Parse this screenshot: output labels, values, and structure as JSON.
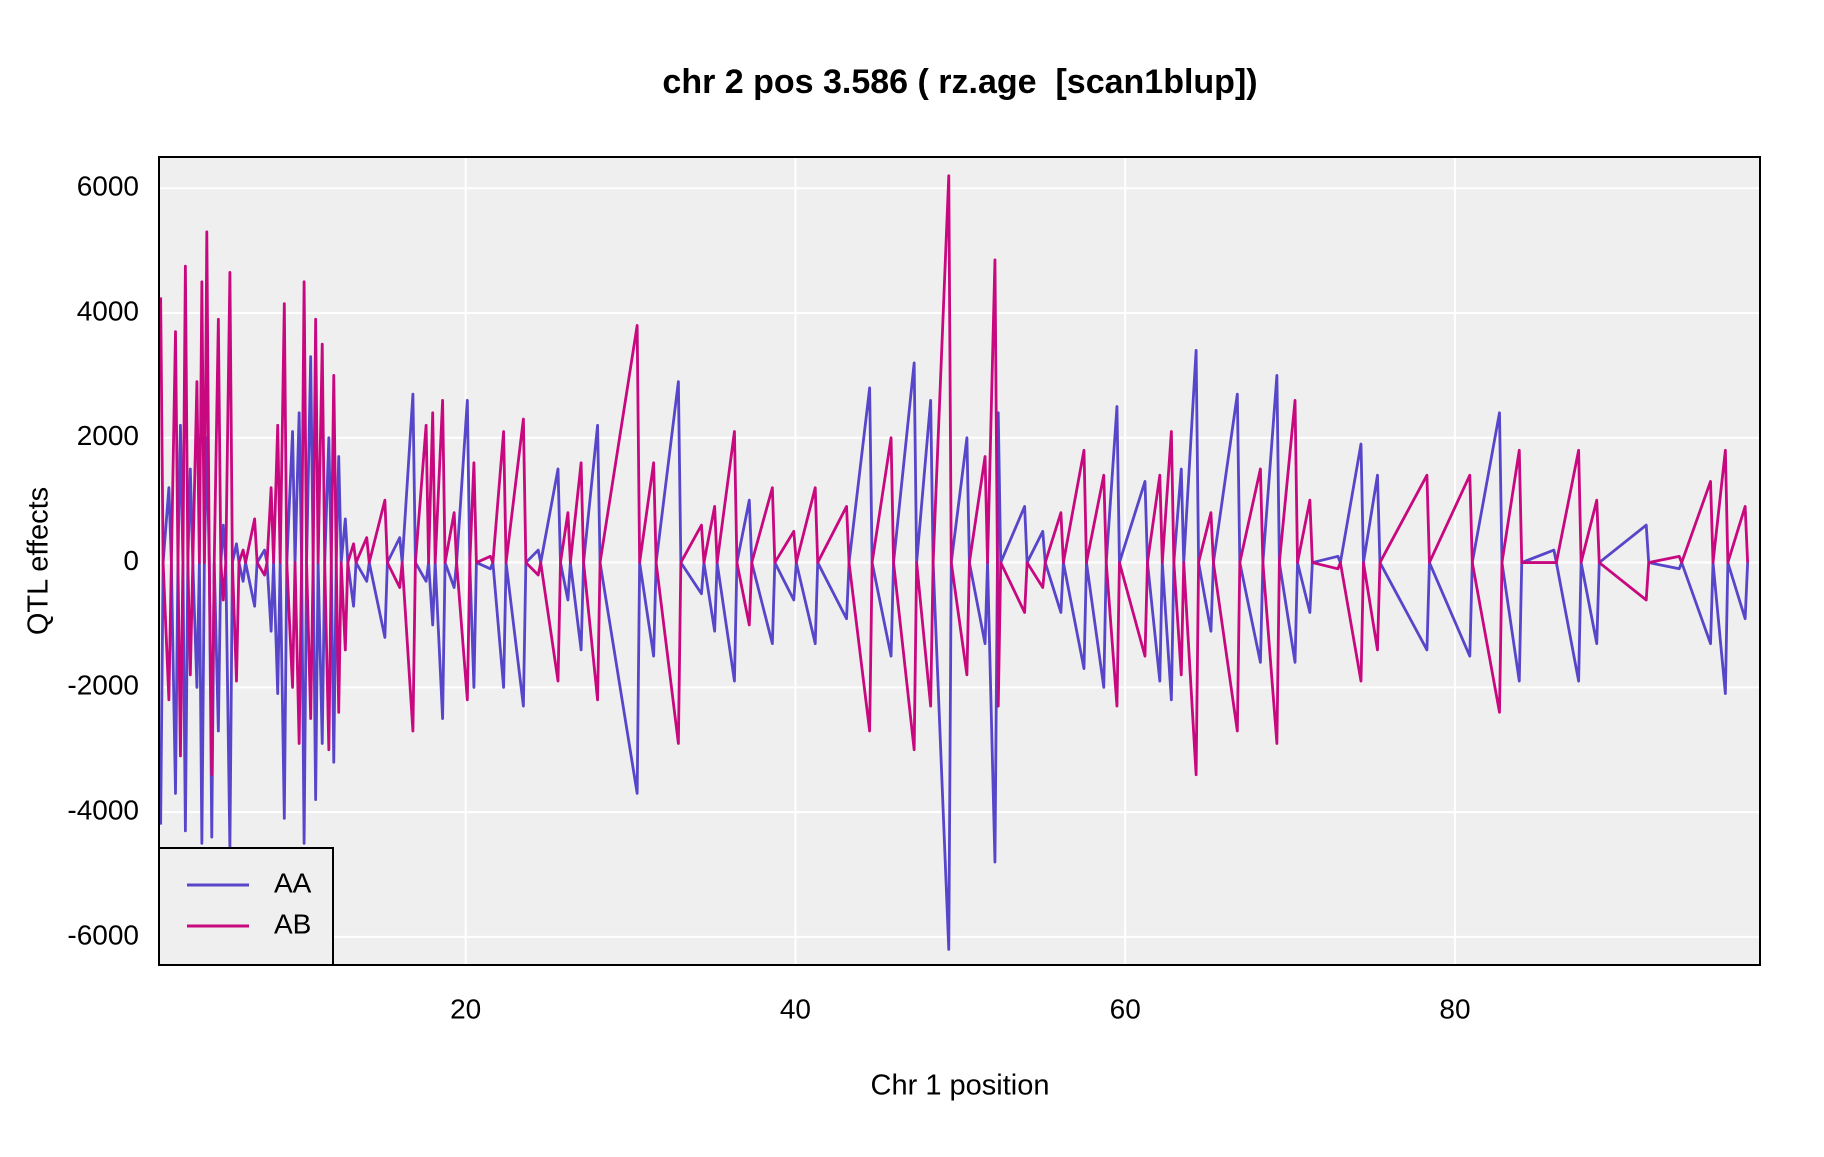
{
  "chart_data": {
    "type": "line",
    "title": "chr 2 pos 3.586 ( rz.age  [scan1blup])",
    "xlabel": "Chr 1 position",
    "ylabel": "QTL effects",
    "xlim": [
      1.4,
      98.5
    ],
    "ylim": [
      -6450,
      6500
    ],
    "xticks": [
      20,
      40,
      60,
      80
    ],
    "yticks": [
      -6000,
      -4000,
      -2000,
      0,
      2000,
      4000,
      6000
    ],
    "grid": true,
    "legend": "bottom-left",
    "x": [
      1.5,
      1.65,
      2.0,
      2.15,
      2.4,
      2.55,
      2.7,
      2.85,
      3.0,
      3.15,
      3.3,
      3.45,
      3.7,
      3.85,
      4.0,
      4.15,
      4.3,
      4.45,
      4.6,
      4.75,
      5.0,
      5.15,
      5.3,
      5.45,
      5.7,
      5.85,
      6.1,
      6.25,
      6.5,
      6.65,
      7.2,
      7.35,
      7.8,
      7.95,
      8.2,
      8.35,
      8.6,
      8.75,
      9.0,
      9.15,
      9.5,
      9.65,
      9.9,
      10.05,
      10.2,
      10.35,
      10.6,
      10.75,
      10.9,
      11.05,
      11.3,
      11.45,
      11.7,
      11.85,
      12.0,
      12.15,
      12.3,
      12.45,
      12.7,
      12.85,
      13.2,
      13.35,
      14.0,
      14.15,
      15.1,
      15.25,
      16.0,
      16.15,
      16.8,
      16.95,
      17.6,
      17.75,
      18.0,
      18.15,
      18.6,
      18.75,
      19.3,
      19.45,
      20.1,
      20.25,
      20.5,
      20.65,
      21.5,
      21.65,
      22.3,
      22.45,
      23.5,
      23.65,
      24.4,
      24.55,
      25.6,
      25.75,
      26.2,
      26.35,
      27.0,
      27.15,
      28.0,
      28.15,
      30.4,
      30.55,
      31.4,
      31.55,
      32.9,
      33.05,
      34.3,
      34.45,
      35.1,
      35.25,
      36.3,
      36.45,
      37.2,
      37.35,
      38.6,
      38.75,
      39.9,
      40.05,
      41.2,
      41.35,
      43.1,
      43.25,
      44.5,
      44.65,
      45.8,
      45.95,
      47.2,
      47.35,
      48.2,
      48.35,
      49.3,
      49.45,
      50.4,
      50.55,
      51.5,
      51.65,
      52.1,
      52.25,
      52.3,
      52.45,
      53.9,
      54.05,
      55.0,
      55.15,
      56.1,
      56.25,
      57.5,
      57.65,
      58.7,
      58.85,
      59.5,
      59.65,
      61.2,
      61.35,
      62.1,
      62.25,
      62.8,
      62.95,
      63.4,
      63.55,
      64.3,
      64.45,
      65.2,
      65.35,
      66.8,
      66.95,
      68.2,
      68.35,
      69.2,
      69.35,
      70.3,
      70.45,
      71.2,
      71.35,
      72.9,
      73.05,
      74.3,
      74.45,
      75.3,
      75.45,
      78.3,
      78.45,
      80.9,
      81.05,
      82.7,
      82.85,
      83.9,
      84.05,
      86.0,
      86.15,
      87.5,
      87.65,
      88.6,
      88.75,
      91.6,
      91.75,
      93.6,
      93.75,
      95.5,
      95.65,
      96.4,
      96.55,
      97.6,
      97.75
    ],
    "series": [
      {
        "name": "AA",
        "color": "#5746c9",
        "values": [
          -4200,
          0,
          1200,
          0,
          -3700,
          0,
          2200,
          0,
          -4300,
          0,
          1500,
          0,
          -2000,
          0,
          -4500,
          0,
          2000,
          0,
          -4400,
          0,
          -2700,
          0,
          600,
          0,
          -4600,
          0,
          300,
          0,
          -300,
          0,
          -700,
          0,
          200,
          0,
          -1100,
          0,
          -2100,
          0,
          -4100,
          0,
          2100,
          0,
          2400,
          0,
          -4500,
          0,
          3300,
          0,
          -3800,
          0,
          -2900,
          0,
          2000,
          0,
          -3200,
          0,
          1700,
          0,
          700,
          0,
          -700,
          0,
          -300,
          0,
          -1200,
          0,
          400,
          0,
          2700,
          0,
          -300,
          0,
          -1000,
          0,
          -2500,
          0,
          -400,
          0,
          2600,
          0,
          -2000,
          0,
          -100,
          0,
          -2000,
          0,
          -2300,
          0,
          200,
          0,
          1500,
          0,
          -600,
          0,
          -1400,
          0,
          2200,
          0,
          -3700,
          0,
          -1500,
          0,
          2900,
          0,
          -500,
          0,
          -1100,
          0,
          -1900,
          0,
          1000,
          0,
          -1300,
          0,
          -600,
          0,
          -1300,
          0,
          -900,
          0,
          2800,
          0,
          -1500,
          0,
          3200,
          0,
          2600,
          0,
          -6200,
          0,
          2000,
          0,
          -1300,
          0,
          -4800,
          0,
          2400,
          0,
          900,
          0,
          500,
          0,
          -800,
          0,
          -1700,
          0,
          -2000,
          0,
          2500,
          0,
          1300,
          0,
          -1900,
          0,
          -2200,
          0,
          1500,
          0,
          3400,
          0,
          -1100,
          0,
          2700,
          0,
          -1600,
          0,
          3000,
          0,
          -1600,
          0,
          -800,
          0,
          100,
          0,
          1900,
          0,
          1400,
          0,
          -1400,
          0,
          -1500,
          0,
          2400,
          0,
          -1900,
          0,
          200,
          0,
          -1900,
          0,
          -1300,
          0,
          600,
          0,
          -100,
          0,
          -1300,
          0,
          -2100,
          0,
          -900,
          0
        ]
      },
      {
        "name": "AB",
        "color": "#c8087f",
        "values": [
          4250,
          0,
          -2200,
          0,
          3700,
          0,
          -3100,
          0,
          4750,
          0,
          -1800,
          0,
          2900,
          0,
          4500,
          0,
          5300,
          0,
          -3400,
          0,
          3900,
          0,
          -600,
          0,
          4650,
          0,
          -1900,
          0,
          200,
          0,
          700,
          0,
          -200,
          0,
          1200,
          0,
          2200,
          0,
          4150,
          0,
          -2000,
          0,
          -2900,
          0,
          4500,
          0,
          -2500,
          0,
          3900,
          0,
          3500,
          0,
          -3000,
          0,
          3000,
          0,
          -2400,
          0,
          -1400,
          0,
          300,
          0,
          400,
          0,
          1000,
          0,
          -400,
          0,
          -2700,
          0,
          2200,
          0,
          2400,
          0,
          2600,
          0,
          800,
          0,
          -2200,
          0,
          1600,
          0,
          100,
          0,
          2100,
          0,
          2300,
          0,
          -200,
          0,
          -1900,
          0,
          800,
          0,
          1600,
          0,
          -2200,
          0,
          3800,
          0,
          1600,
          0,
          -2900,
          0,
          600,
          0,
          900,
          0,
          2100,
          0,
          -1000,
          0,
          1200,
          0,
          500,
          0,
          1200,
          0,
          900,
          0,
          -2700,
          0,
          2000,
          0,
          -3000,
          0,
          -2300,
          0,
          6200,
          0,
          -1800,
          0,
          1700,
          0,
          4850,
          0,
          -2300,
          0,
          -800,
          0,
          -400,
          0,
          800,
          0,
          1800,
          0,
          1400,
          0,
          -2300,
          0,
          -1500,
          0,
          1400,
          0,
          2100,
          0,
          -1800,
          0,
          -3400,
          0,
          800,
          0,
          -2700,
          0,
          1500,
          0,
          -2900,
          0,
          2600,
          0,
          1000,
          0,
          -100,
          0,
          -1900,
          0,
          -1400,
          0,
          1400,
          0,
          1400,
          0,
          -2400,
          0,
          1800,
          0,
          0,
          0,
          1800,
          0,
          1000,
          0,
          -600,
          0,
          100,
          0,
          1300,
          0,
          1800,
          0,
          900,
          0
        ]
      }
    ]
  }
}
